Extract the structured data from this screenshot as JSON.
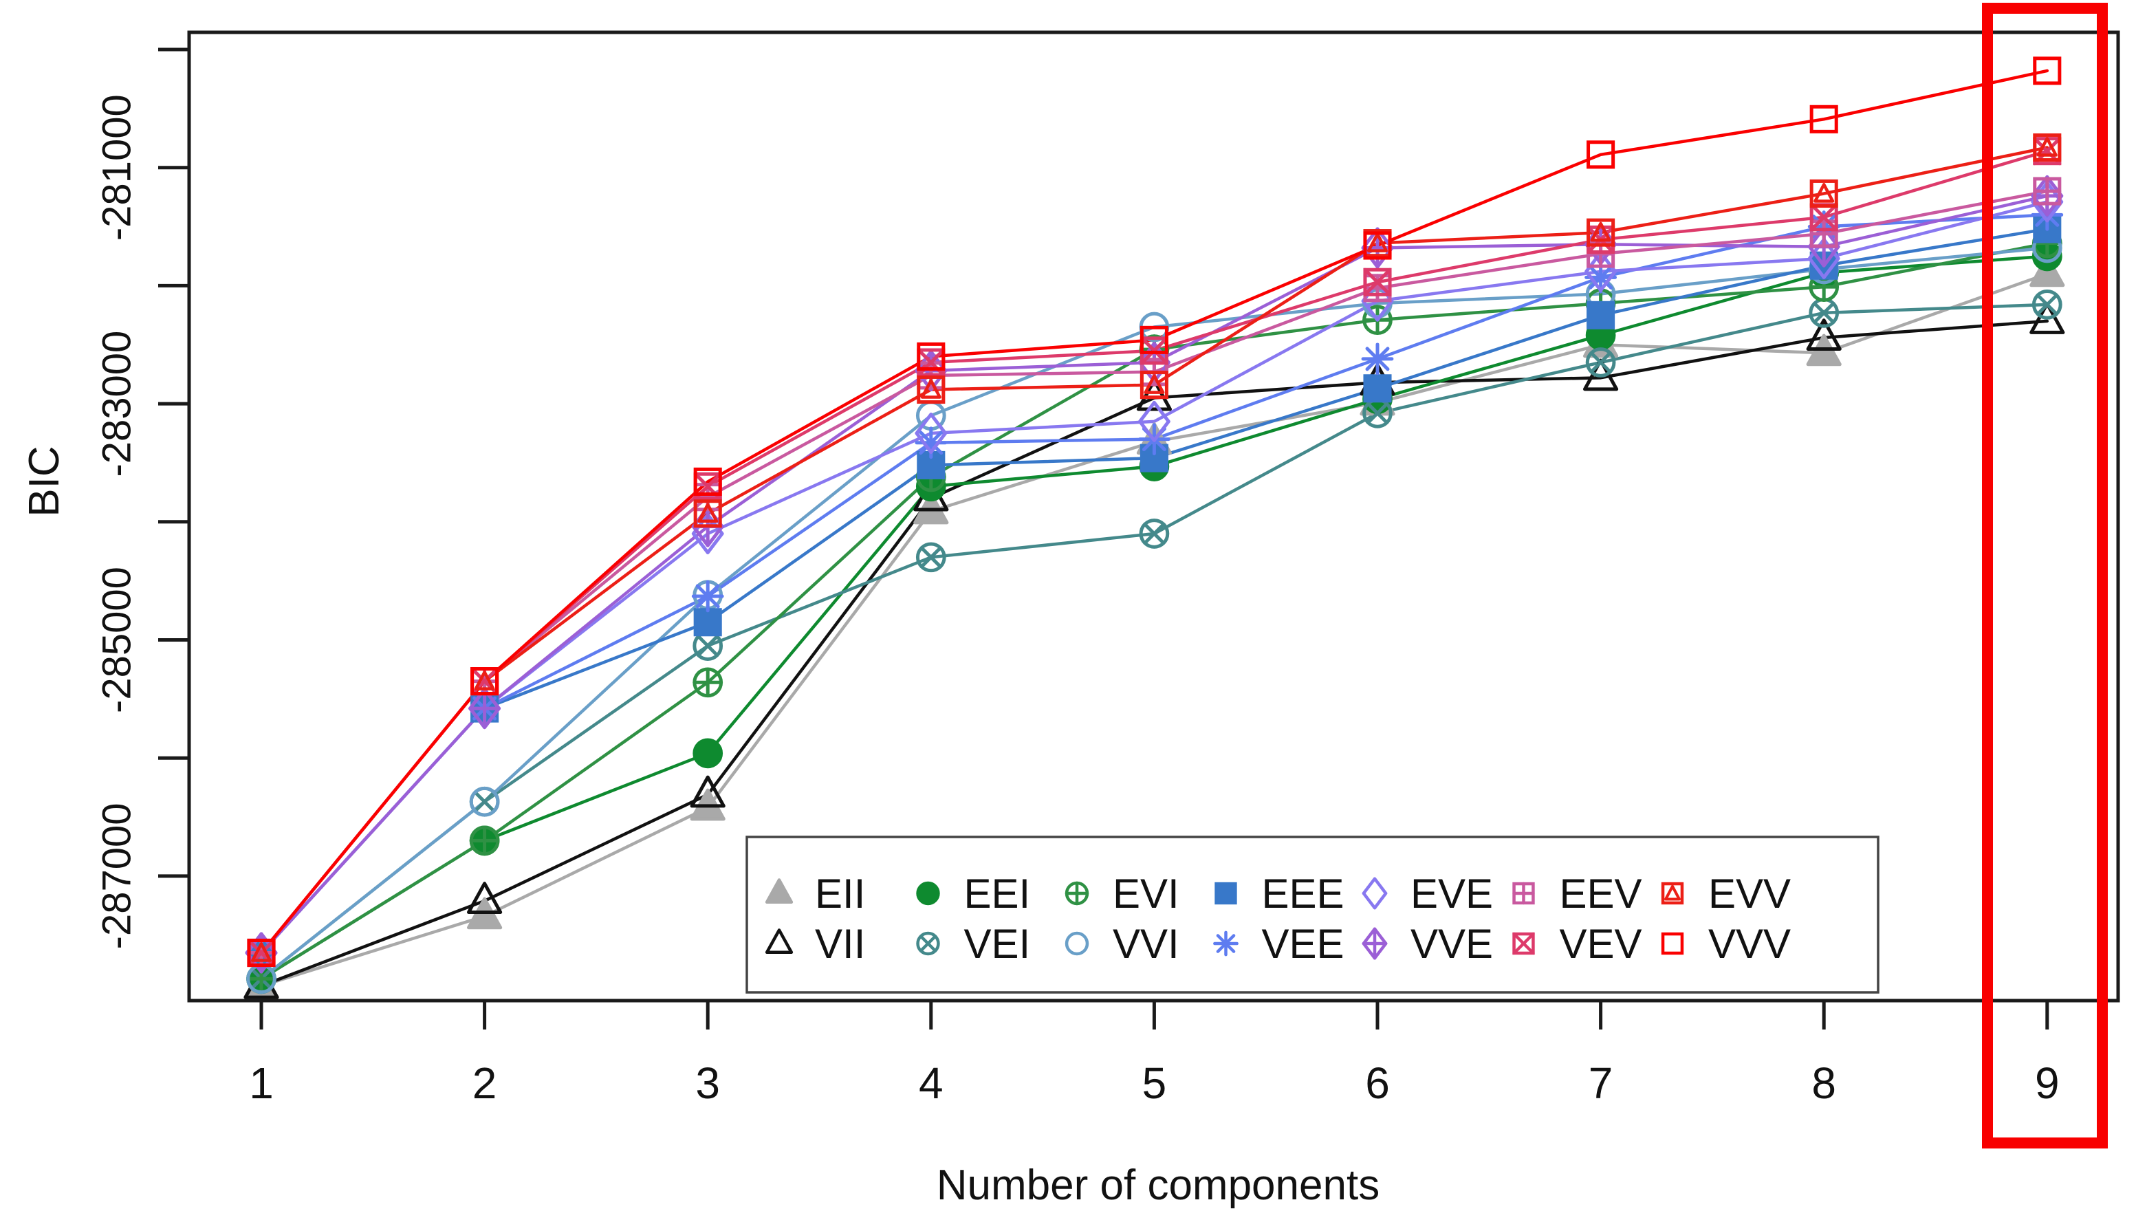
{
  "figure": {
    "background": "#FFFFFF",
    "frame_color": "#1A1A1A",
    "highlight_color": "#F80000",
    "legend_border_color": "#444444"
  },
  "chart_data": {
    "type": "line",
    "title": "",
    "xlabel": "Number of components",
    "ylabel": "BIC",
    "x": [
      1,
      2,
      3,
      4,
      5,
      6,
      7,
      8,
      9
    ],
    "x_tick_labels": [
      "1",
      "2",
      "3",
      "4",
      "5",
      "6",
      "7",
      "8",
      "9"
    ],
    "y_ticks": [
      -280000,
      -281000,
      -282000,
      -283000,
      -284000,
      -285000,
      -286000,
      -287000
    ],
    "y_tick_labels": [
      "",
      "-281000",
      "",
      "-283000",
      "",
      "-285000",
      "",
      "-287000"
    ],
    "ylim": [
      -288300,
      -279850
    ],
    "grid": false,
    "legend_position": "bottom-center-inside",
    "highlighted_x": 9,
    "legend_columns": [
      [
        "EII",
        "VII"
      ],
      [
        "EEI",
        "VEI"
      ],
      [
        "EVI",
        "VVI"
      ],
      [
        "EEE",
        "VEE"
      ],
      [
        "EVE",
        "VVE"
      ],
      [
        "EEV",
        "VEV"
      ],
      [
        "EVV",
        "VVV"
      ]
    ],
    "series": [
      {
        "name": "EII",
        "color": "#A9A9A9",
        "symbol": "filled-triangle",
        "values": [
          -287930,
          -287340,
          -286420,
          -283910,
          -283320,
          -282990,
          -282500,
          -282570,
          -281900
        ]
      },
      {
        "name": "VII",
        "color": "#111111",
        "symbol": "open-triangle",
        "values": [
          -287930,
          -287210,
          -286310,
          -283800,
          -282950,
          -282820,
          -282780,
          -282440,
          -282300
        ]
      },
      {
        "name": "EEI",
        "color": "#0E8A2F",
        "symbol": "filled-circle",
        "values": [
          -287870,
          -286700,
          -285960,
          -283700,
          -283530,
          -282960,
          -282420,
          -281890,
          -281750
        ]
      },
      {
        "name": "VEI",
        "color": "#44898B",
        "symbol": "circle-x",
        "values": [
          -287870,
          -286370,
          -285050,
          -284300,
          -284100,
          -283080,
          -282650,
          -282230,
          -282160
        ]
      },
      {
        "name": "EVI",
        "color": "#2F9144",
        "symbol": "circle-plus",
        "values": [
          -287870,
          -286700,
          -285360,
          -283620,
          -282540,
          -282290,
          -282150,
          -282010,
          -281640
        ]
      },
      {
        "name": "VVI",
        "color": "#699FC8",
        "symbol": "open-circle",
        "values": [
          -287870,
          -286370,
          -284620,
          -283100,
          -282350,
          -282150,
          -282070,
          -281860,
          -281680
        ]
      },
      {
        "name": "EEE",
        "color": "#3878C9",
        "symbol": "filled-square",
        "values": [
          -287650,
          -285580,
          -284850,
          -283520,
          -283460,
          -282870,
          -282250,
          -281830,
          -281520
        ]
      },
      {
        "name": "VEE",
        "color": "#5E7CF0",
        "symbol": "asterisk",
        "values": [
          -287650,
          -285580,
          -284630,
          -283330,
          -283300,
          -282620,
          -281930,
          -281500,
          -281400
        ]
      },
      {
        "name": "EVE",
        "color": "#8878F0",
        "symbol": "open-diamond",
        "values": [
          -287650,
          -285580,
          -284100,
          -283250,
          -283150,
          -282130,
          -281880,
          -281770,
          -281290
        ]
      },
      {
        "name": "VVE",
        "color": "#9B5FD6",
        "symbol": "diamond-plus",
        "values": [
          -287650,
          -285580,
          -284040,
          -282720,
          -282650,
          -281680,
          -281650,
          -281670,
          -281240
        ]
      },
      {
        "name": "EEV",
        "color": "#C9599F",
        "symbol": "square-plus",
        "values": [
          -287650,
          -285350,
          -283790,
          -282760,
          -282730,
          -282020,
          -281730,
          -281560,
          -281200
        ]
      },
      {
        "name": "VEV",
        "color": "#DD3A6A",
        "symbol": "square-x",
        "values": [
          -287650,
          -285350,
          -283700,
          -282650,
          -282550,
          -281970,
          -281610,
          -281420,
          -280860
        ]
      },
      {
        "name": "EVV",
        "color": "#EC1F16",
        "symbol": "square-triangle",
        "values": [
          -287650,
          -285350,
          -283930,
          -282880,
          -282840,
          -281640,
          -281550,
          -281220,
          -280830
        ]
      },
      {
        "name": "VVV",
        "color": "#FA0000",
        "symbol": "open-square",
        "values": [
          -287650,
          -285350,
          -283660,
          -282600,
          -282460,
          -281660,
          -280890,
          -280590,
          -280180
        ]
      }
    ]
  }
}
